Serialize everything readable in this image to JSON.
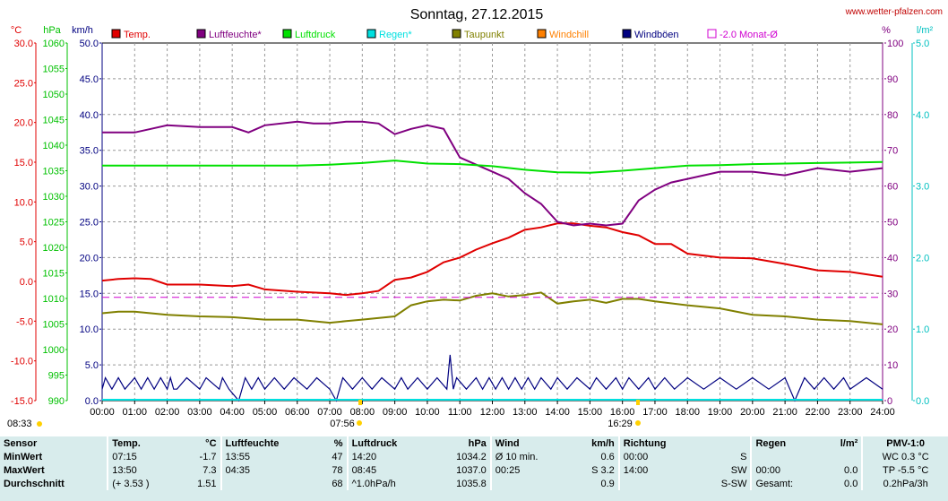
{
  "title": "Sonntag, 27.12.2015",
  "site": "www.wetter-pfalzen.com",
  "axis_units": {
    "temp": "°C",
    "hpa": "hPa",
    "kmh": "km/h",
    "pct": "%",
    "rain": "l/m²"
  },
  "legend": [
    {
      "label": "Temp.",
      "color": "#e00000"
    },
    {
      "label": "Luftfeuchte*",
      "color": "#800080"
    },
    {
      "label": "Luftdruck",
      "color": "#00e000"
    },
    {
      "label": "Regen*",
      "color": "#00e0e0"
    },
    {
      "label": "Taupunkt",
      "color": "#808000"
    },
    {
      "label": "Windchill",
      "color": "#ff8000"
    },
    {
      "label": "Windböen",
      "color": "#000080"
    },
    {
      "label": "-2.0 Monat-Ø",
      "color": "#d000d0"
    }
  ],
  "sun": {
    "sunrise_label": "08:33",
    "dawn_label": "07:56",
    "sunset_label": "16:29"
  },
  "chart_data": {
    "type": "line",
    "x_ticks": [
      "00:00",
      "01:00",
      "02:00",
      "03:00",
      "04:00",
      "05:00",
      "06:00",
      "07:00",
      "08:00",
      "09:00",
      "10:00",
      "11:00",
      "12:00",
      "13:00",
      "14:00",
      "15:00",
      "16:00",
      "17:00",
      "18:00",
      "19:00",
      "20:00",
      "21:00",
      "22:00",
      "23:00",
      "24:00"
    ],
    "xlim": [
      0,
      24
    ],
    "axes": {
      "temp": {
        "ticks": [
          "30.0",
          "25.0",
          "20.0",
          "15.0",
          "10.0",
          "5.0",
          "0.0",
          "-5.0",
          "-10.0",
          "-15.0"
        ],
        "range": [
          -15,
          30
        ],
        "color": "#e00000"
      },
      "hpa": {
        "ticks": [
          "1060",
          "1055",
          "1050",
          "1045",
          "1040",
          "1035",
          "1030",
          "1025",
          "1020",
          "1015",
          "1010",
          "1005",
          "1000",
          "995",
          "990"
        ],
        "range": [
          990,
          1060
        ],
        "color": "#00c000"
      },
      "kmh": {
        "ticks": [
          "50.0",
          "45.0",
          "40.0",
          "35.0",
          "30.0",
          "25.0",
          "20.0",
          "15.0",
          "10.0",
          "5.0",
          "0.0"
        ],
        "range": [
          0,
          50
        ],
        "color": "#000080"
      },
      "pct": {
        "ticks": [
          "100",
          "90",
          "80",
          "70",
          "60",
          "50",
          "40",
          "30",
          "20",
          "10",
          "0"
        ],
        "range": [
          0,
          100
        ],
        "color": "#800080"
      },
      "rain": {
        "ticks": [
          "5.0",
          "4.0",
          "3.0",
          "2.0",
          "1.0",
          "0.0"
        ],
        "range": [
          0,
          5
        ],
        "color": "#00c0c0"
      }
    },
    "series": [
      {
        "name": "Temp.",
        "axis": "temp",
        "color": "#e00000",
        "x": [
          0,
          0.5,
          1,
          1.5,
          2,
          3,
          4,
          4.5,
          5,
          6,
          7,
          7.5,
          8,
          8.5,
          9,
          9.5,
          10,
          10.5,
          11,
          11.5,
          12,
          12.5,
          13,
          13.5,
          14,
          14.5,
          15,
          15.5,
          16,
          16.5,
          17,
          17.5,
          18,
          19,
          20,
          21,
          22,
          23,
          24
        ],
        "y": [
          0.1,
          0.3,
          0.4,
          0.3,
          -0.4,
          -0.4,
          -0.6,
          -0.4,
          -1.0,
          -1.3,
          -1.5,
          -1.7,
          -1.5,
          -1.2,
          0.2,
          0.5,
          1.2,
          2.4,
          3.0,
          4.0,
          4.8,
          5.5,
          6.5,
          6.8,
          7.3,
          7.3,
          7.0,
          6.8,
          6.2,
          5.8,
          4.7,
          4.7,
          3.5,
          3.0,
          2.9,
          2.2,
          1.4,
          1.2,
          0.6
        ]
      },
      {
        "name": "Luftfeuchte*",
        "axis": "pct",
        "color": "#800080",
        "x": [
          0,
          0.5,
          1,
          1.5,
          2,
          3,
          4,
          4.5,
          5,
          6,
          6.5,
          7,
          7.5,
          8,
          8.5,
          9,
          9.5,
          10,
          10.5,
          11,
          11.5,
          12,
          12.5,
          13,
          13.5,
          14,
          14.5,
          15,
          15.5,
          16,
          16.5,
          17,
          17.5,
          18,
          19,
          20,
          21,
          22,
          23,
          24
        ],
        "y": [
          75,
          75,
          75,
          76,
          77,
          76.5,
          76.5,
          75,
          77,
          78,
          77.5,
          77.5,
          78,
          78,
          77.5,
          74.5,
          76,
          77,
          76,
          68,
          66,
          64,
          62,
          58,
          55,
          50,
          49,
          49.5,
          49,
          49.5,
          56,
          59,
          61,
          62,
          64,
          64,
          63,
          65,
          64,
          65
        ]
      },
      {
        "name": "Luftdruck",
        "axis": "hpa",
        "color": "#00e000",
        "x": [
          0,
          2,
          4,
          6,
          7,
          8,
          9,
          10,
          11,
          12,
          13,
          14,
          15,
          16,
          17,
          18,
          19,
          20,
          21,
          22,
          23,
          24
        ],
        "y": [
          1036,
          1036,
          1036,
          1036,
          1036.2,
          1036.5,
          1037.0,
          1036.4,
          1036.3,
          1035.9,
          1035.2,
          1034.7,
          1034.6,
          1035.0,
          1035.5,
          1036.0,
          1036.1,
          1036.3,
          1036.4,
          1036.5,
          1036.6,
          1036.7
        ]
      },
      {
        "name": "Taupunkt",
        "axis": "temp",
        "color": "#808000",
        "x": [
          0,
          0.5,
          1,
          2,
          3,
          4,
          5,
          6,
          7,
          7.5,
          8,
          9,
          9.5,
          10,
          10.5,
          11,
          11.5,
          12,
          12.5,
          13,
          13.5,
          14,
          14.5,
          15,
          15.5,
          16,
          16.5,
          17,
          18,
          19,
          20,
          21,
          22,
          23,
          24
        ],
        "y": [
          -4.0,
          -3.8,
          -3.8,
          -4.2,
          -4.4,
          -4.5,
          -4.8,
          -4.8,
          -5.2,
          -5.0,
          -4.8,
          -4.4,
          -3.0,
          -2.5,
          -2.3,
          -2.4,
          -1.8,
          -1.5,
          -1.9,
          -1.7,
          -1.4,
          -2.8,
          -2.5,
          -2.3,
          -2.7,
          -2.2,
          -2.2,
          -2.5,
          -3.0,
          -3.4,
          -4.2,
          -4.4,
          -4.8,
          -5.0,
          -5.4
        ]
      },
      {
        "name": "Windböen",
        "axis": "kmh",
        "color": "#000080",
        "x": [
          0,
          0.1,
          0.3,
          0.5,
          0.7,
          1.0,
          1.2,
          1.4,
          1.6,
          1.8,
          2.0,
          2.1,
          2.2,
          2.3,
          2.6,
          3.0,
          3.2,
          3.6,
          3.7,
          3.9,
          4.2,
          4.4,
          4.6,
          4.8,
          5.0,
          5.3,
          5.6,
          5.9,
          6.3,
          6.6,
          7.0,
          7.2,
          7.4,
          7.7,
          8.0,
          8.3,
          8.6,
          9.0,
          9.2,
          9.4,
          9.7,
          10.0,
          10.3,
          10.6,
          10.7,
          10.8,
          10.9,
          11.2,
          11.5,
          11.7,
          11.9,
          12.1,
          12.3,
          12.5,
          12.7,
          12.9,
          13.1,
          13.3,
          13.5,
          13.8,
          14.0,
          14.3,
          14.6,
          15.0,
          15.2,
          15.5,
          15.8,
          16.0,
          16.2,
          16.5,
          16.8,
          17.0,
          17.3,
          17.6,
          18.0,
          18.5,
          19.0,
          19.5,
          20.0,
          20.5,
          21.0,
          21.3,
          21.6,
          21.9,
          22.2,
          22.5,
          22.8,
          23.0,
          23.5,
          24.0
        ],
        "y": [
          1.6,
          3.2,
          1.6,
          3.2,
          1.6,
          3.2,
          1.6,
          3.2,
          1.6,
          3.2,
          1.6,
          3.2,
          1.6,
          1.6,
          3.2,
          1.6,
          3.2,
          1.6,
          3.2,
          1.6,
          0,
          3.2,
          1.6,
          3.2,
          1.6,
          3.2,
          1.6,
          3.2,
          1.6,
          3.2,
          1.6,
          0,
          3.2,
          1.6,
          3.2,
          1.6,
          3.2,
          1.6,
          3.2,
          1.6,
          3.2,
          1.6,
          3.2,
          1.6,
          6.4,
          1.6,
          3.2,
          1.6,
          3.2,
          1.6,
          3.2,
          1.6,
          3.2,
          1.6,
          3.2,
          1.6,
          3.2,
          1.6,
          3.2,
          1.6,
          3.2,
          1.6,
          3.2,
          1.6,
          3.2,
          1.6,
          3.2,
          1.6,
          3.2,
          1.6,
          3.2,
          1.6,
          3.2,
          1.6,
          3.2,
          1.6,
          3.2,
          1.6,
          3.2,
          1.6,
          3.2,
          0,
          3.2,
          1.6,
          3.2,
          1.6,
          3.2,
          1.6,
          3.2,
          1.6
        ]
      },
      {
        "name": "-2.0 Monat-Ø",
        "axis": "temp",
        "color": "#d000d0",
        "dashed": true,
        "x": [
          0,
          24
        ],
        "y": [
          -2.0,
          -2.0
        ]
      }
    ]
  },
  "table": {
    "headers": {
      "sensor": "Sensor",
      "temp": "Temp.",
      "temp_unit": "°C",
      "hum": "Luftfeuchte",
      "hum_unit": "%",
      "press": "Luftdruck",
      "press_unit": "hPa",
      "wind": "Wind",
      "wind_unit": "km/h",
      "dir": "Richtung",
      "rain": "Regen",
      "rain_unit": "l/m²",
      "pmv": "PMV-1:0"
    },
    "rows": [
      {
        "label": "MinWert",
        "temp_time": "07:15",
        "temp_val": "-1.7",
        "hum_time": "13:55",
        "hum_val": "47",
        "press_time": "14:20",
        "press_val": "1034.2",
        "wind_time": "Ø 10 min.",
        "wind_val": "0.6",
        "dir_time": "00:00",
        "dir_val": "S",
        "rain_time": "",
        "rain_val": "",
        "pmv": "WC 0.3 °C"
      },
      {
        "label": "MaxWert",
        "temp_time": "13:50",
        "temp_val": "7.3",
        "hum_time": "04:35",
        "hum_val": "78",
        "press_time": "08:45",
        "press_val": "1037.0",
        "wind_time": "00:25",
        "wind_val": "S 3.2",
        "dir_time": "14:00",
        "dir_val": "SW",
        "rain_time": "00:00",
        "rain_val": "0.0",
        "pmv": "TP -5.5 °C"
      },
      {
        "label": "Durchschnitt",
        "temp_time": "(+ 3.53 )",
        "temp_val": "1.51",
        "hum_time": "",
        "hum_val": "68",
        "press_time": "^1.0hPa/h",
        "press_val": "1035.8",
        "wind_time": "",
        "wind_val": "0.9",
        "dir_time": "",
        "dir_val": "S-SW",
        "rain_time": "Gesamt:",
        "rain_val": "0.0",
        "pmv": "0.2hPa/3h"
      }
    ]
  }
}
